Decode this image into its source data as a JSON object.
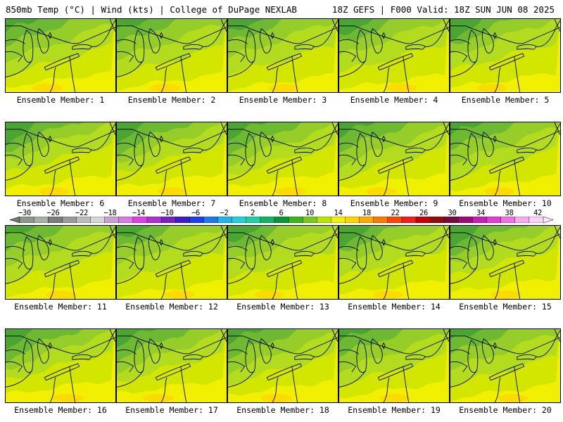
{
  "header": {
    "left": "850mb Temp (°C) | Wind (kts) | College of DuPage NEXLAB",
    "right": "18Z GEFS | F000 Valid: 18Z SUN JUN 08 2025"
  },
  "legend": {
    "labels": [
      "−30",
      "−26",
      "−22",
      "−18",
      "−14",
      "−10",
      "−6",
      "−2",
      "2",
      "6",
      "10",
      "14",
      "18",
      "22",
      "26",
      "30",
      "34",
      "38",
      "42"
    ],
    "colors": [
      "#6e7b6e",
      "#8c968c",
      "#a7aea7",
      "#7c7c7c",
      "#9a9a9a",
      "#bcbcbc",
      "#d6d6d6",
      "#c8a0d8",
      "#d87ae6",
      "#e23ee6",
      "#b030d8",
      "#7820c8",
      "#3c1ec8",
      "#1e3cf0",
      "#1e78f0",
      "#1eb4f0",
      "#1ed2d8",
      "#1ed2a0",
      "#12b464",
      "#0a9632",
      "#3cb41e",
      "#78c81e",
      "#b4e600",
      "#f0f000",
      "#ffd200",
      "#ffaa00",
      "#ff7800",
      "#ff4600",
      "#f01e1e",
      "#c80000",
      "#960a0a",
      "#780a3c",
      "#a00a78",
      "#c81eb4",
      "#e63cd2",
      "#f070e6",
      "#f8a8f0",
      "#fcd2f8",
      "#ffe6fc"
    ]
  },
  "panels": [
    {
      "label": "Ensemble Member: 1"
    },
    {
      "label": "Ensemble Member: 2"
    },
    {
      "label": "Ensemble Member: 3"
    },
    {
      "label": "Ensemble Member: 4"
    },
    {
      "label": "Ensemble Member: 5"
    },
    {
      "label": "Ensemble Member: 6"
    },
    {
      "label": "Ensemble Member: 7"
    },
    {
      "label": "Ensemble Member: 8"
    },
    {
      "label": "Ensemble Member: 9"
    },
    {
      "label": "Ensemble Member: 10"
    },
    {
      "label": "Ensemble Member: 11"
    },
    {
      "label": "Ensemble Member: 12"
    },
    {
      "label": "Ensemble Member: 13"
    },
    {
      "label": "Ensemble Member: 14"
    },
    {
      "label": "Ensemble Member: 15"
    },
    {
      "label": "Ensemble Member: 16"
    },
    {
      "label": "Ensemble Member: 17"
    },
    {
      "label": "Ensemble Member: 18"
    },
    {
      "label": "Ensemble Member: 19"
    },
    {
      "label": "Ensemble Member: 20"
    }
  ],
  "field_colors": {
    "band_1": "#f0f000",
    "band_2": "#d2e600",
    "band_3": "#b4dc1e",
    "band_4": "#96cd28",
    "band_5": "#6eb932",
    "band_6": "#4aa532",
    "warm_spot": "#ffd700",
    "boundary": "#000000"
  }
}
